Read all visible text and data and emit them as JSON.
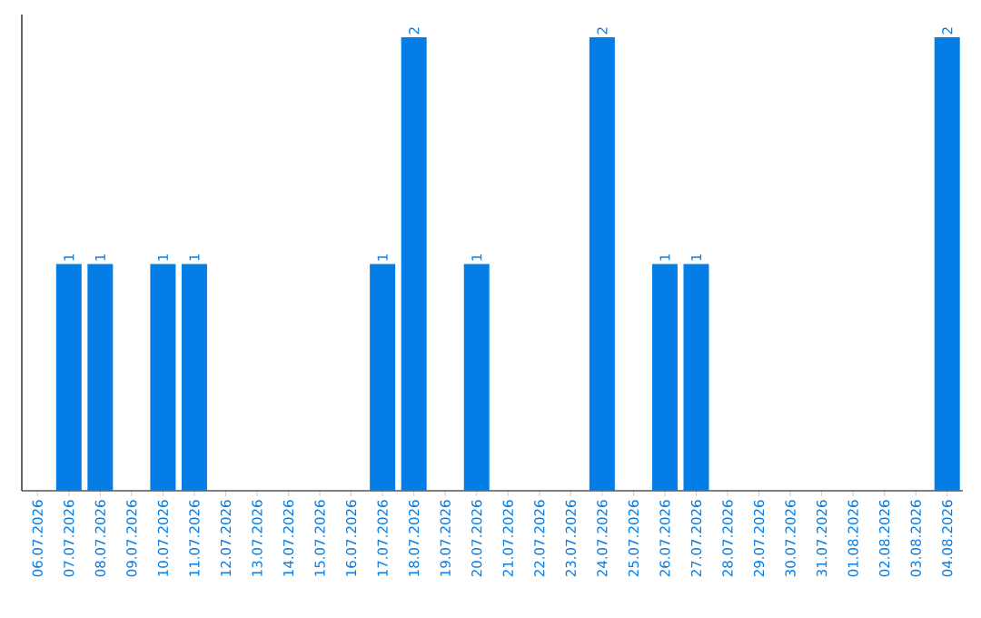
{
  "chart_data": {
    "type": "bar",
    "categories": [
      "06.07.2026",
      "07.07.2026",
      "08.07.2026",
      "09.07.2026",
      "10.07.2026",
      "11.07.2026",
      "12.07.2026",
      "13.07.2026",
      "14.07.2026",
      "15.07.2026",
      "16.07.2026",
      "17.07.2026",
      "18.07.2026",
      "19.07.2026",
      "20.07.2026",
      "21.07.2026",
      "22.07.2026",
      "23.07.2026",
      "24.07.2026",
      "25.07.2026",
      "26.07.2026",
      "27.07.2026",
      "28.07.2026",
      "29.07.2026",
      "30.07.2026",
      "31.07.2026",
      "01.08.2026",
      "02.08.2026",
      "03.08.2026",
      "04.08.2026"
    ],
    "values": [
      0,
      1,
      1,
      0,
      1,
      1,
      0,
      0,
      0,
      0,
      0,
      1,
      2,
      0,
      1,
      0,
      0,
      0,
      2,
      0,
      1,
      1,
      0,
      0,
      0,
      0,
      0,
      0,
      0,
      2
    ],
    "value_labels": [
      null,
      "1",
      "1",
      null,
      "1",
      "1",
      null,
      null,
      null,
      null,
      null,
      "1",
      "2",
      null,
      "1",
      null,
      null,
      null,
      "2",
      null,
      "1",
      "1",
      null,
      null,
      null,
      null,
      null,
      null,
      null,
      "2"
    ],
    "color": "#047ee6"
  }
}
